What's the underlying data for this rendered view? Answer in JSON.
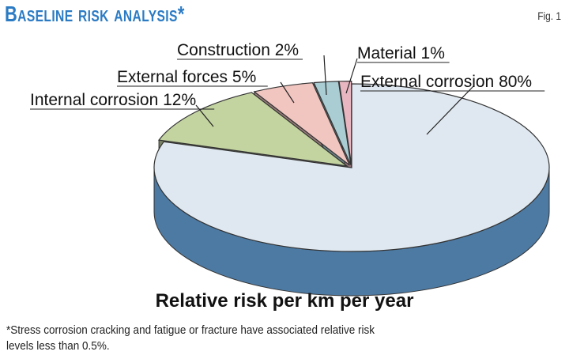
{
  "figure": {
    "title": "Baseline risk analysis*",
    "fig_label": "Fig. 1",
    "footnote": "*Stress corrosion cracking and fatigue or fracture have associated relative risk levels less than 0.5%."
  },
  "chart_data": {
    "type": "pie",
    "style": "3d-exploded",
    "title": "Baseline risk analysis*",
    "xlabel": "Relative risk per km per year",
    "slices": [
      {
        "label": "External corrosion 80%",
        "name": "External corrosion",
        "value": 80,
        "color": "#dfe8f0"
      },
      {
        "label": "Internal corrosion 12%",
        "name": "Internal corrosion",
        "value": 12,
        "color": "#c3d4a0"
      },
      {
        "label": "External forces 5%",
        "name": "External forces",
        "value": 5,
        "color": "#f1c5c0"
      },
      {
        "label": "Construction 2%",
        "name": "Construction",
        "value": 2,
        "color": "#a9cdd3"
      },
      {
        "label": "Material 1%",
        "name": "Material",
        "value": 1,
        "color": "#e7b6c0"
      }
    ]
  }
}
